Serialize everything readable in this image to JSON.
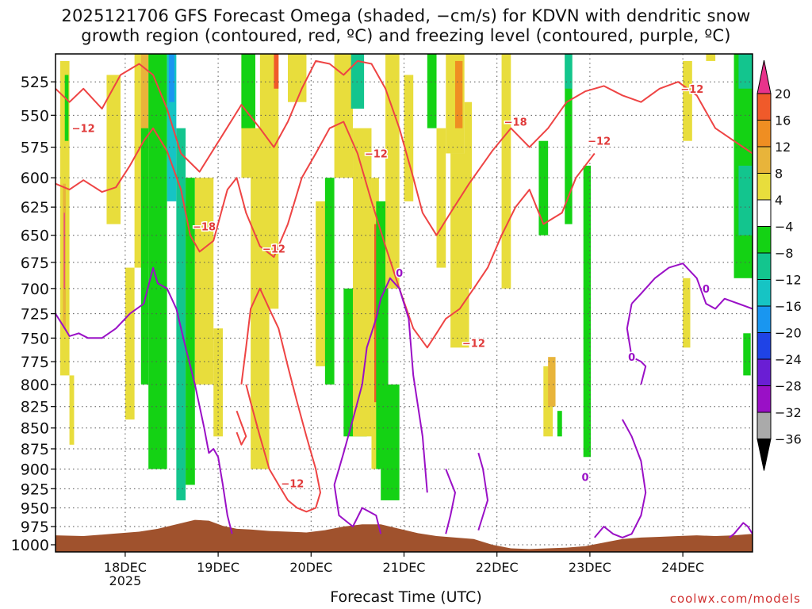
{
  "title_line1": "2025121706 GFS Forecast Omega (shaded, −cm/s) for KDVN with dendritic snow",
  "title_line2": "growth region (contoured, red, ºC) and freezing level (contoured, purple, ºC)",
  "xlabel": "Forecast Time (UTC)",
  "credit": "coolwx.com/models",
  "chart_data": {
    "type": "heatmap",
    "title": "2025121706 GFS Forecast Omega (shaded, −cm/s) for KDVN with dendritic snow growth region (contoured, red, ºC) and freezing level (contoured, purple, ºC)",
    "xlabel": "Forecast Time (UTC)",
    "ylabel": "",
    "x_ticks": [
      {
        "t": 0.75,
        "label": "18DEC",
        "sublabel": "2025"
      },
      {
        "t": 1.75,
        "label": "19DEC"
      },
      {
        "t": 2.75,
        "label": "20DEC"
      },
      {
        "t": 3.75,
        "label": "21DEC"
      },
      {
        "t": 4.75,
        "label": "22DEC"
      },
      {
        "t": 5.75,
        "label": "23DEC"
      },
      {
        "t": 6.75,
        "label": "24DEC"
      }
    ],
    "x_range": [
      0,
      7.5
    ],
    "y_ticks": [
      525,
      550,
      575,
      600,
      625,
      650,
      675,
      700,
      725,
      750,
      775,
      800,
      825,
      850,
      875,
      900,
      925,
      950,
      975,
      1000
    ],
    "y_range": [
      505,
      1010
    ],
    "y_scale": "log-pressure",
    "grid": true,
    "colorbar": {
      "labels": [
        "20",
        "16",
        "12",
        "8",
        "4",
        "−4",
        "−8",
        "−12",
        "−16",
        "−20",
        "−24",
        "−28",
        "−32",
        "−36"
      ],
      "colors": [
        "#e8338b",
        "#f05a2a",
        "#ef8e22",
        "#e8b43a",
        "#e8dd3c",
        "#ffffff",
        "#14d214",
        "#13c58e",
        "#16c4c4",
        "#1996f0",
        "#1f43e6",
        "#6a1ed4",
        "#9a10c6",
        "#aaaaaa",
        "#000000"
      ]
    },
    "shaded_regions": [
      {
        "t0": 0.05,
        "t1": 0.15,
        "p0": 510,
        "p1": 790,
        "color": "#e8dd3c"
      },
      {
        "t0": 0.08,
        "t1": 0.11,
        "p0": 605,
        "p1": 740,
        "color": "#e8b43a"
      },
      {
        "t0": 0.09,
        "t1": 0.1,
        "p0": 630,
        "p1": 700,
        "color": "#e8338b"
      },
      {
        "t0": 0.1,
        "t1": 0.14,
        "p0": 520,
        "p1": 570,
        "color": "#14d214"
      },
      {
        "t0": 0.15,
        "t1": 0.2,
        "p0": 790,
        "p1": 870,
        "color": "#e8dd3c"
      },
      {
        "t0": 0.55,
        "t1": 0.7,
        "p0": 520,
        "p1": 640,
        "color": "#e8dd3c"
      },
      {
        "t0": 0.75,
        "t1": 0.85,
        "p0": 680,
        "p1": 840,
        "color": "#e8dd3c"
      },
      {
        "t0": 0.85,
        "t1": 1.0,
        "p0": 505,
        "p1": 680,
        "color": "#e8dd3c"
      },
      {
        "t0": 0.92,
        "t1": 1.0,
        "p0": 505,
        "p1": 560,
        "color": "#e8b43a"
      },
      {
        "t0": 0.92,
        "t1": 1.0,
        "p0": 560,
        "p1": 800,
        "color": "#14d214"
      },
      {
        "t0": 1.0,
        "t1": 1.2,
        "p0": 505,
        "p1": 900,
        "color": "#14d214"
      },
      {
        "t0": 1.2,
        "t1": 1.3,
        "p0": 505,
        "p1": 620,
        "color": "#16c4c4"
      },
      {
        "t0": 1.22,
        "t1": 1.28,
        "p0": 505,
        "p1": 540,
        "color": "#1996f0"
      },
      {
        "t0": 1.3,
        "t1": 1.4,
        "p0": 560,
        "p1": 940,
        "color": "#13c58e"
      },
      {
        "t0": 1.4,
        "t1": 1.5,
        "p0": 600,
        "p1": 920,
        "color": "#14d214"
      },
      {
        "t0": 1.5,
        "t1": 1.7,
        "p0": 600,
        "p1": 800,
        "color": "#e8dd3c"
      },
      {
        "t0": 1.7,
        "t1": 1.8,
        "p0": 740,
        "p1": 860,
        "color": "#e8dd3c"
      },
      {
        "t0": 2.0,
        "t1": 2.15,
        "p0": 505,
        "p1": 600,
        "color": "#e8dd3c"
      },
      {
        "t0": 2.0,
        "t1": 2.15,
        "p0": 505,
        "p1": 560,
        "color": "#14d214"
      },
      {
        "t0": 2.1,
        "t1": 2.3,
        "p0": 560,
        "p1": 900,
        "color": "#e8dd3c"
      },
      {
        "t0": 2.2,
        "t1": 2.4,
        "p0": 505,
        "p1": 720,
        "color": "#e8dd3c"
      },
      {
        "t0": 2.35,
        "t1": 2.4,
        "p0": 505,
        "p1": 530,
        "color": "#f05a2a"
      },
      {
        "t0": 2.5,
        "t1": 2.7,
        "p0": 505,
        "p1": 540,
        "color": "#e8dd3c"
      },
      {
        "t0": 2.8,
        "t1": 2.95,
        "p0": 620,
        "p1": 780,
        "color": "#e8dd3c"
      },
      {
        "t0": 2.9,
        "t1": 3.0,
        "p0": 600,
        "p1": 800,
        "color": "#14d214"
      },
      {
        "t0": 3.0,
        "t1": 3.2,
        "p0": 505,
        "p1": 600,
        "color": "#e8dd3c"
      },
      {
        "t0": 3.1,
        "t1": 3.35,
        "p0": 700,
        "p1": 860,
        "color": "#14d214"
      },
      {
        "t0": 3.18,
        "t1": 3.32,
        "p0": 505,
        "p1": 545,
        "color": "#13c58e"
      },
      {
        "t0": 3.2,
        "t1": 3.4,
        "p0": 560,
        "p1": 860,
        "color": "#e8dd3c"
      },
      {
        "t0": 3.4,
        "t1": 3.48,
        "p0": 600,
        "p1": 900,
        "color": "#e8dd3c"
      },
      {
        "t0": 3.43,
        "t1": 3.47,
        "p0": 640,
        "p1": 820,
        "color": "#f05a2a"
      },
      {
        "t0": 3.45,
        "t1": 3.58,
        "p0": 620,
        "p1": 900,
        "color": "#14d214"
      },
      {
        "t0": 3.5,
        "t1": 3.7,
        "p0": 800,
        "p1": 940,
        "color": "#14d214"
      },
      {
        "t0": 3.55,
        "t1": 3.7,
        "p0": 505,
        "p1": 700,
        "color": "#e8dd3c"
      },
      {
        "t0": 3.75,
        "t1": 3.85,
        "p0": 520,
        "p1": 620,
        "color": "#e8dd3c"
      },
      {
        "t0": 4.0,
        "t1": 4.1,
        "p0": 505,
        "p1": 560,
        "color": "#14d214"
      },
      {
        "t0": 4.1,
        "t1": 4.2,
        "p0": 560,
        "p1": 680,
        "color": "#e8dd3c"
      },
      {
        "t0": 4.2,
        "t1": 4.4,
        "p0": 505,
        "p1": 580,
        "color": "#e8dd3c"
      },
      {
        "t0": 4.25,
        "t1": 4.45,
        "p0": 580,
        "p1": 760,
        "color": "#e8dd3c"
      },
      {
        "t0": 4.3,
        "t1": 4.38,
        "p0": 510,
        "p1": 560,
        "color": "#ef8e22"
      },
      {
        "t0": 4.4,
        "t1": 4.48,
        "p0": 540,
        "p1": 700,
        "color": "#e8dd3c"
      },
      {
        "t0": 4.8,
        "t1": 4.9,
        "p0": 505,
        "p1": 700,
        "color": "#e8dd3c"
      },
      {
        "t0": 5.2,
        "t1": 5.3,
        "p0": 570,
        "p1": 650,
        "color": "#14d214"
      },
      {
        "t0": 5.25,
        "t1": 5.35,
        "p0": 780,
        "p1": 860,
        "color": "#e8dd3c"
      },
      {
        "t0": 5.3,
        "t1": 5.38,
        "p0": 770,
        "p1": 825,
        "color": "#e8b43a"
      },
      {
        "t0": 5.4,
        "t1": 5.45,
        "p0": 830,
        "p1": 860,
        "color": "#14d214"
      },
      {
        "t0": 5.48,
        "t1": 5.56,
        "p0": 505,
        "p1": 640,
        "color": "#14d214"
      },
      {
        "t0": 5.48,
        "t1": 5.56,
        "p0": 505,
        "p1": 530,
        "color": "#13c58e"
      },
      {
        "t0": 5.68,
        "t1": 5.76,
        "p0": 590,
        "p1": 885,
        "color": "#14d214"
      },
      {
        "t0": 6.75,
        "t1": 6.85,
        "p0": 510,
        "p1": 570,
        "color": "#e8dd3c"
      },
      {
        "t0": 6.75,
        "t1": 6.83,
        "p0": 690,
        "p1": 760,
        "color": "#e8dd3c"
      },
      {
        "t0": 7.0,
        "t1": 7.1,
        "p0": 505,
        "p1": 510,
        "color": "#e8dd3c"
      },
      {
        "t0": 7.3,
        "t1": 7.5,
        "p0": 505,
        "p1": 690,
        "color": "#14d214"
      },
      {
        "t0": 7.35,
        "t1": 7.5,
        "p0": 505,
        "p1": 530,
        "color": "#13c58e"
      },
      {
        "t0": 7.35,
        "t1": 7.5,
        "p0": 590,
        "p1": 650,
        "color": "#13c58e"
      },
      {
        "t0": 7.4,
        "t1": 7.48,
        "p0": 745,
        "p1": 790,
        "color": "#14d214"
      }
    ],
    "dgz_contours": [
      {
        "t": [
          0.0,
          0.15,
          0.3,
          0.5,
          0.7,
          0.9,
          1.05,
          1.2,
          1.35,
          1.55,
          1.8,
          2.0,
          2.2,
          2.35,
          2.5,
          2.65,
          2.8,
          2.95,
          3.1,
          3.25,
          3.4,
          3.55,
          3.7,
          3.85,
          3.95,
          4.1,
          4.25,
          4.45,
          4.7,
          4.9,
          5.1,
          5.3,
          5.5,
          5.7,
          5.9,
          6.1,
          6.3,
          6.5,
          6.7,
          6.9,
          7.1,
          7.3,
          7.5
        ],
        "p": [
          530,
          540,
          530,
          545,
          520,
          512,
          520,
          545,
          580,
          595,
          565,
          542,
          560,
          575,
          555,
          530,
          510,
          512,
          520,
          510,
          512,
          530,
          560,
          600,
          630,
          650,
          630,
          605,
          578,
          560,
          575,
          560,
          540,
          532,
          528,
          535,
          540,
          530,
          525,
          535,
          560,
          570,
          580
        ]
      },
      {
        "t": [
          0.0,
          0.15,
          0.3,
          0.5,
          0.65,
          0.8,
          0.95,
          1.05,
          1.2,
          1.35,
          1.45,
          1.55,
          1.7,
          1.85,
          1.95,
          2.05,
          2.2,
          2.35,
          2.5,
          2.65,
          2.8,
          2.95,
          3.1,
          3.25,
          3.4,
          3.55,
          3.7,
          3.85,
          4.0,
          4.1,
          4.2,
          4.35,
          4.5,
          4.65,
          4.8,
          4.95,
          5.1,
          5.25,
          5.45,
          5.6,
          5.8
        ],
        "p": [
          605,
          610,
          602,
          612,
          608,
          590,
          570,
          560,
          578,
          610,
          650,
          665,
          655,
          610,
          600,
          630,
          660,
          670,
          640,
          600,
          580,
          560,
          555,
          580,
          620,
          660,
          700,
          740,
          760,
          745,
          730,
          720,
          700,
          680,
          650,
          625,
          610,
          640,
          630,
          600,
          580
        ]
      },
      {
        "t": [
          2.0,
          2.05,
          2.1,
          2.2,
          2.3,
          2.4,
          2.5,
          2.6,
          2.7,
          2.8,
          2.85,
          2.8,
          2.7,
          2.6,
          2.5,
          2.4,
          2.3,
          2.2,
          2.1,
          2.05
        ],
        "p": [
          800,
          760,
          720,
          700,
          720,
          740,
          780,
          820,
          860,
          900,
          930,
          950,
          955,
          950,
          940,
          920,
          900,
          860,
          820,
          800
        ]
      },
      {
        "t": [
          1.95,
          2.0,
          2.05,
          2.0,
          1.95
        ],
        "p": [
          830,
          845,
          860,
          870,
          855
        ]
      }
    ],
    "fzl_contours": [
      {
        "t": [
          0.0,
          0.1,
          0.15,
          0.25,
          0.35,
          0.5,
          0.65,
          0.8,
          0.95,
          1.05,
          1.1,
          1.2,
          1.3,
          1.4,
          1.5,
          1.6,
          1.65,
          1.7,
          1.75,
          1.8,
          1.85,
          1.9
        ],
        "p": [
          725,
          740,
          748,
          745,
          750,
          750,
          740,
          725,
          715,
          680,
          695,
          700,
          720,
          760,
          800,
          850,
          880,
          875,
          885,
          920,
          960,
          985
        ]
      },
      {
        "t": [
          3.0,
          3.1,
          3.2,
          3.3,
          3.35,
          3.45,
          3.5,
          3.55,
          3.6,
          3.7,
          3.8,
          3.85,
          3.95,
          4.0
        ],
        "p": [
          920,
          880,
          840,
          800,
          760,
          730,
          710,
          700,
          690,
          700,
          730,
          790,
          860,
          930
        ]
      },
      {
        "t": [
          3.0,
          3.05,
          3.2,
          3.3,
          3.45,
          3.5
        ],
        "p": [
          920,
          960,
          975,
          950,
          960,
          985
        ]
      },
      {
        "t": [
          6.2,
          6.3,
          6.45,
          6.6,
          6.75,
          6.9,
          7.0,
          7.1,
          7.2,
          7.35,
          7.5
        ],
        "p": [
          715,
          705,
          690,
          680,
          676,
          690,
          715,
          720,
          710,
          715,
          720
        ]
      },
      {
        "t": [
          6.2,
          6.15,
          6.2,
          6.3,
          6.35,
          6.3
        ],
        "p": [
          715,
          740,
          770,
          775,
          780,
          800
        ]
      },
      {
        "t": [
          6.1,
          6.2,
          6.3,
          6.35,
          6.3,
          6.2,
          6.1,
          6.0,
          5.9,
          5.8
        ],
        "p": [
          840,
          860,
          890,
          930,
          960,
          985,
          990,
          985,
          975,
          990
        ]
      },
      {
        "t": [
          4.55,
          4.6,
          4.65,
          4.6,
          4.55
        ],
        "p": [
          880,
          900,
          940,
          960,
          980
        ]
      },
      {
        "t": [
          4.2,
          4.25,
          4.3,
          4.25,
          4.2
        ],
        "p": [
          900,
          915,
          930,
          960,
          985
        ]
      },
      {
        "t": [
          7.25,
          7.3,
          7.4,
          7.45,
          7.5
        ],
        "p": [
          990,
          985,
          970,
          975,
          985
        ]
      }
    ],
    "contour_labels": [
      {
        "text": "−12",
        "t": 0.3,
        "p": 560,
        "color": "#e03a3a"
      },
      {
        "text": "−18",
        "t": 1.6,
        "p": 642,
        "color": "#e03a3a"
      },
      {
        "text": "−12",
        "t": 2.35,
        "p": 662,
        "color": "#e03a3a"
      },
      {
        "text": "−12",
        "t": 3.45,
        "p": 580,
        "color": "#e03a3a"
      },
      {
        "text": "−18",
        "t": 4.95,
        "p": 555,
        "color": "#e03a3a"
      },
      {
        "text": "−12",
        "t": 5.85,
        "p": 570,
        "color": "#e03a3a"
      },
      {
        "text": "−12",
        "t": 6.85,
        "p": 530,
        "color": "#e03a3a"
      },
      {
        "text": "−12",
        "t": 4.5,
        "p": 755,
        "color": "#e03a3a"
      },
      {
        "text": "−12",
        "t": 2.55,
        "p": 918,
        "color": "#e03a3a"
      },
      {
        "text": "0",
        "t": 3.7,
        "p": 685,
        "color": "#9a10c6"
      },
      {
        "text": "0",
        "t": 7.0,
        "p": 700,
        "color": "#9a10c6"
      },
      {
        "text": "0",
        "t": 6.2,
        "p": 770,
        "color": "#9a10c6"
      },
      {
        "text": "0",
        "t": 5.7,
        "p": 910,
        "color": "#9a10c6"
      }
    ],
    "terrain": {
      "t": [
        0.0,
        0.3,
        0.6,
        0.9,
        1.1,
        1.3,
        1.5,
        1.65,
        1.8,
        1.95,
        2.1,
        2.3,
        2.5,
        2.7,
        2.9,
        3.1,
        3.3,
        3.5,
        3.7,
        3.9,
        4.1,
        4.3,
        4.5,
        4.7,
        4.9,
        5.1,
        5.3,
        5.5,
        5.7,
        5.9,
        6.1,
        6.3,
        6.5,
        6.7,
        6.9,
        7.1,
        7.3,
        7.5
      ],
      "p": [
        987,
        988,
        985,
        982,
        978,
        972,
        966,
        967,
        974,
        978,
        979,
        981,
        982,
        983,
        980,
        975,
        972,
        972,
        978,
        984,
        988,
        990,
        992,
        1000,
        1005,
        1006,
        1005,
        1004,
        1002,
        997,
        992,
        990,
        989,
        988,
        987,
        988,
        987,
        985
      ],
      "color": "#a0522d"
    }
  }
}
